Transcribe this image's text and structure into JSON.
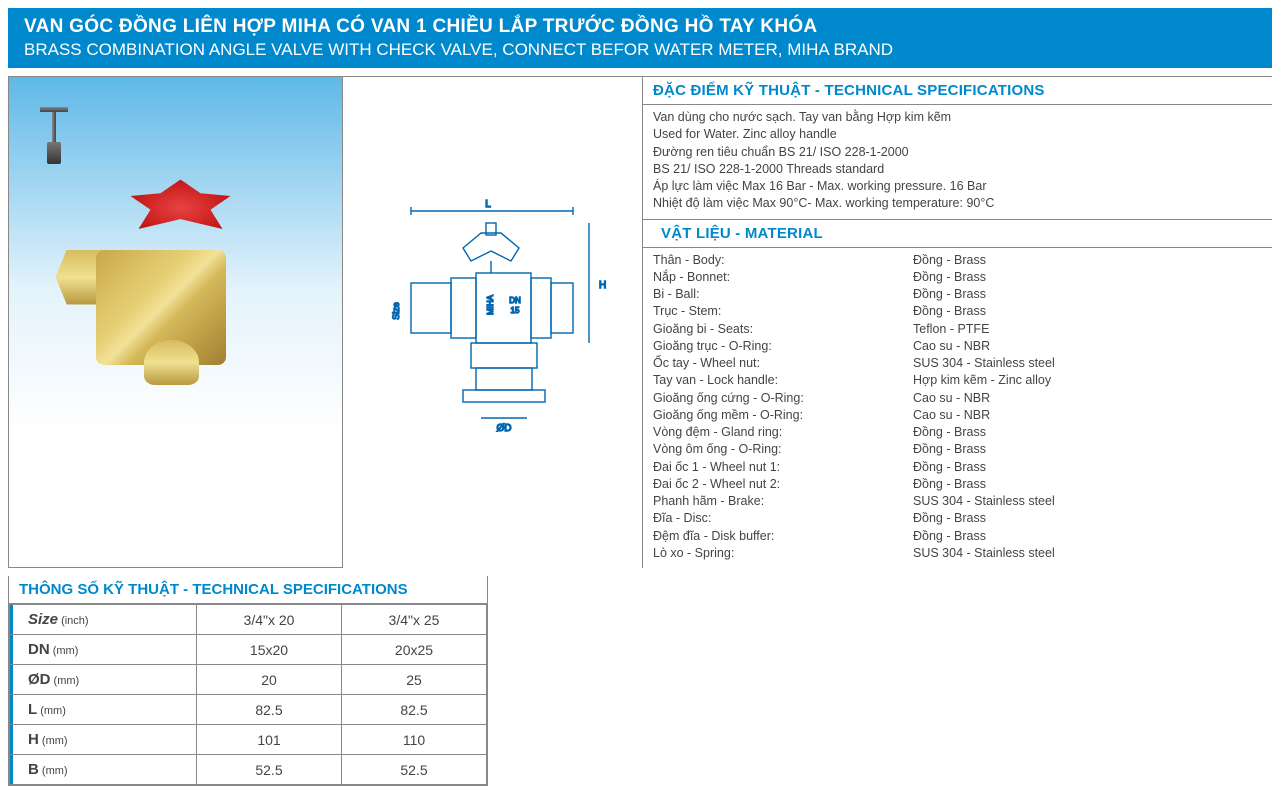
{
  "header": {
    "title_vi": "VAN GÓC ĐỒNG LIÊN HỢP MIHA CÓ VAN 1 CHIỀU LẮP TRƯỚC ĐỒNG HỒ TAY KHÓA",
    "title_en": "BRASS COMBINATION ANGLE VALVE WITH CHECK VALVE, CONNECT BEFOR WATER METER, MIHA BRAND"
  },
  "colors": {
    "brand_blue": "#0088cc",
    "text_gray": "#444444",
    "border_gray": "#888888",
    "photo_bg_top": "#5fb8e8",
    "photo_bg_bottom": "#ffffff",
    "handle_red": "#c41818",
    "brass": "#d4b858"
  },
  "tech_spec": {
    "header": "ĐẶC ĐIỂM KỸ THUẬT - TECHNICAL SPECIFICATIONS",
    "lines": [
      "Van dùng cho nước sạch. Tay van bằng Hợp kim kẽm",
      "Used for Water.  Zinc alloy handle",
      "Đường ren tiêu chuẩn BS 21/ ISO 228-1-2000",
      "BS 21/ ISO 228-1-2000 Threads standard",
      "Áp lực làm việc Max 16 Bar - Max. working pressure. 16 Bar",
      "Nhiệt độ làm việc Max 90°C- Max. working temperature: 90°C"
    ]
  },
  "material": {
    "header": "VẬT LIỆU - MATERIAL",
    "rows": [
      {
        "label": "Thân - Body:",
        "value": "Đồng - Brass"
      },
      {
        "label": "Nắp - Bonnet:",
        "value": "Đồng - Brass"
      },
      {
        "label": "Bi - Ball:",
        "value": "Đồng - Brass"
      },
      {
        "label": "Trục - Stem:",
        "value": "Đồng - Brass"
      },
      {
        "label": "Gioăng bi - Seats:",
        "value": "Teflon - PTFE"
      },
      {
        "label": "Gioăng trục - O-Ring:",
        "value": "Cao su - NBR"
      },
      {
        "label": "Ốc tay - Wheel nut:",
        "value": "SUS 304 - Stainless steel"
      },
      {
        "label": "Tay van - Lock handle:",
        "value": "Hợp kim kẽm - Zinc alloy"
      },
      {
        "label": "Gioăng ống cứng - O-Ring:",
        "value": "Cao su - NBR"
      },
      {
        "label": "Gioăng ống mềm - O-Ring:",
        "value": "Cao su - NBR"
      },
      {
        "label": "Vòng đệm -  Gland ring:",
        "value": "Đồng - Brass"
      },
      {
        "label": "Vòng ôm ống - O-Ring:",
        "value": "Đồng - Brass"
      },
      {
        "label": "Đai ốc 1 - Wheel nut 1:",
        "value": "Đồng - Brass"
      },
      {
        "label": "Đai ốc 2 - Wheel nut 2:",
        "value": "Đồng - Brass"
      },
      {
        "label": "Phanh hãm - Brake:",
        "value": "SUS 304 - Stainless steel"
      },
      {
        "label": "Đĩa - Disc:",
        "value": "Đồng - Brass"
      },
      {
        "label": "Đệm đĩa - Disk buffer:",
        "value": "Đồng - Brass"
      },
      {
        "label": "Lò xo - Spring:",
        "value": "SUS 304 - Stainless steel"
      }
    ]
  },
  "dim_table": {
    "header": "THÔNG SỐ KỸ THUẬT - TECHNICAL SPECIFICATIONS",
    "columns": [
      "Size (inch)",
      "3/4\"x 20",
      "3/4\"x 25"
    ],
    "rows": [
      {
        "label": "Size",
        "unit": "(inch)",
        "c1": "3/4\"x 20",
        "c2": "3/4\"x 25"
      },
      {
        "label": "DN",
        "unit": "(mm)",
        "c1": "15x20",
        "c2": "20x25"
      },
      {
        "label": "ØD",
        "unit": "(mm)",
        "c1": "20",
        "c2": "25"
      },
      {
        "label": "L",
        "unit": "(mm)",
        "c1": "82.5",
        "c2": "82.5"
      },
      {
        "label": "H",
        "unit": "(mm)",
        "c1": "101",
        "c2": "110"
      },
      {
        "label": "B",
        "unit": "(mm)",
        "c1": "52.5",
        "c2": "52.5"
      }
    ]
  },
  "diagram": {
    "labels": {
      "L": "L",
      "Size": "Size",
      "H": "H",
      "OD": "ØD",
      "B": "B",
      "brand": "MIHA",
      "dn": "DN 15"
    },
    "stroke": "#0066b0",
    "stroke_width": 1.4
  }
}
